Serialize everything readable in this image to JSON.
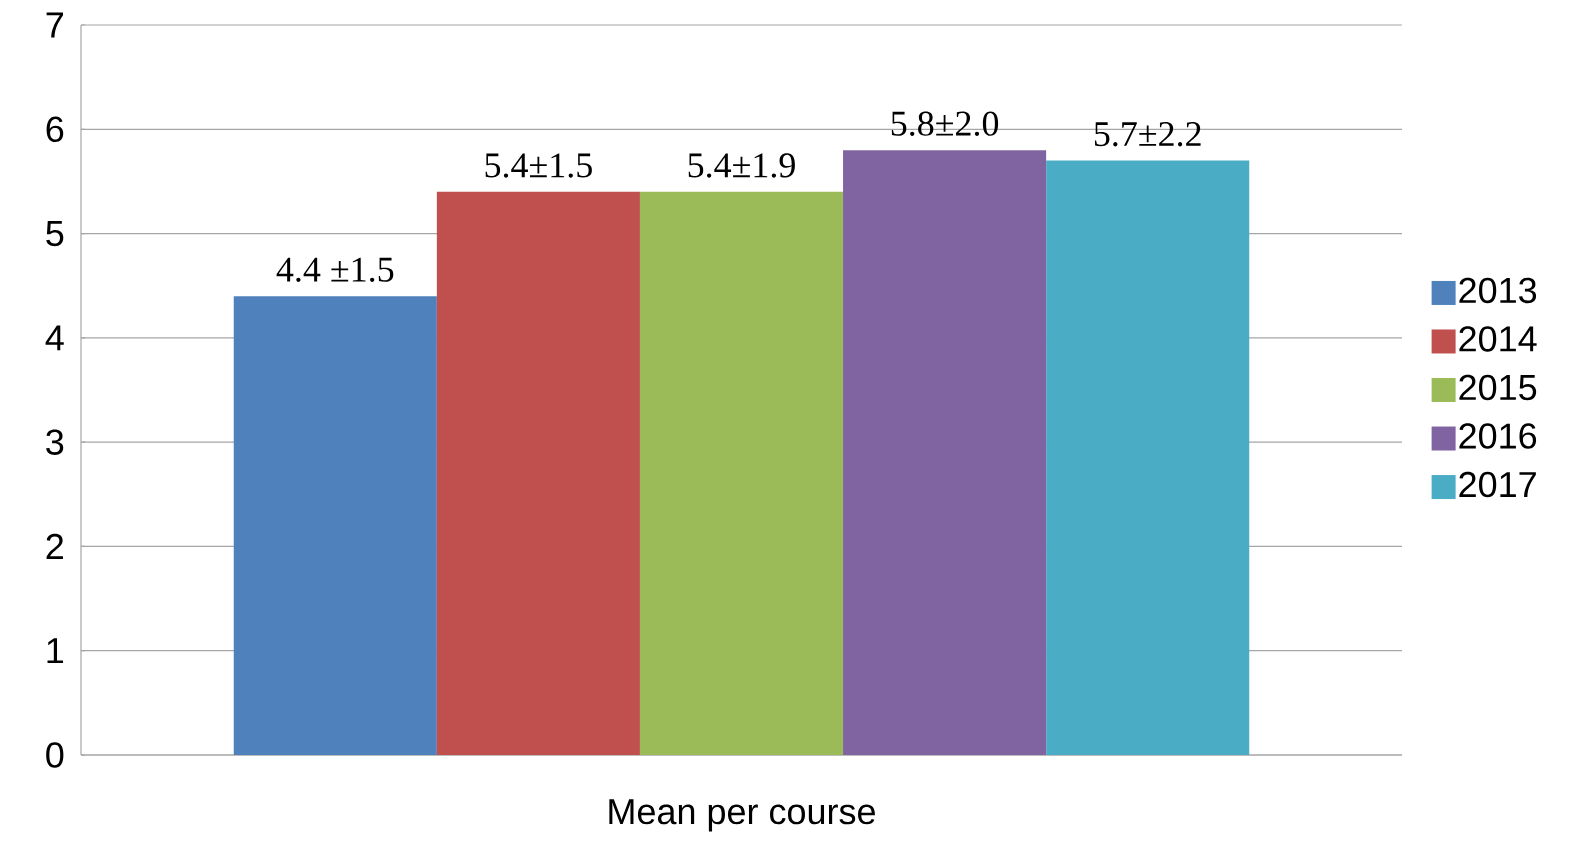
{
  "chart_data": {
    "type": "bar",
    "xlabel": "Mean per course",
    "categories": [
      null
    ],
    "series": [
      {
        "name": "2013",
        "color": "#4f81bd",
        "values": [
          4.4
        ],
        "value_labels": [
          "4.4 ±1.5"
        ]
      },
      {
        "name": "2014",
        "color": "#c0504d",
        "values": [
          5.4
        ],
        "value_labels": [
          "5.4±1.5"
        ]
      },
      {
        "name": "2015",
        "color": "#9bbb59",
        "values": [
          5.4
        ],
        "value_labels": [
          "5.4±1.9"
        ]
      },
      {
        "name": "2016",
        "color": "#8064a2",
        "values": [
          5.8
        ],
        "value_labels": [
          "5.8±2.0"
        ]
      },
      {
        "name": "2017",
        "color": "#4bacc6",
        "values": [
          5.7
        ],
        "value_labels": [
          "5.7±2.2"
        ]
      }
    ],
    "ylim": [
      0,
      7
    ],
    "yticks": [
      0,
      1,
      2,
      3,
      4,
      5,
      6,
      7
    ],
    "grid": "y",
    "legend": "right"
  }
}
